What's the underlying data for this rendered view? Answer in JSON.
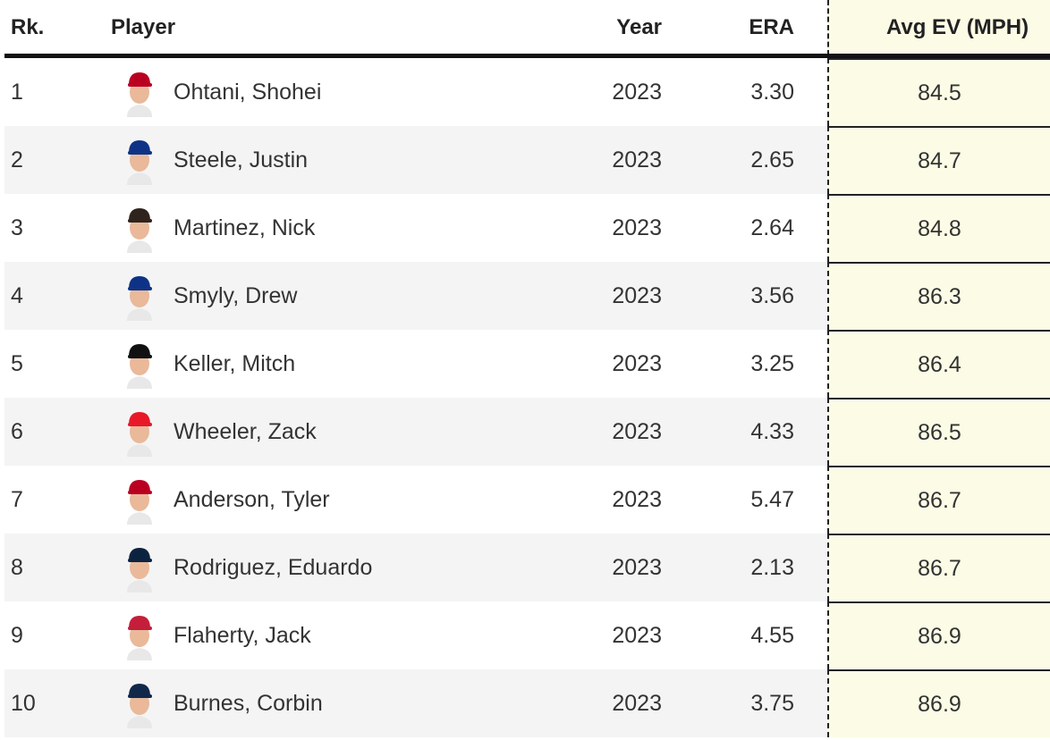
{
  "table": {
    "header": [
      "Rk.",
      "Player",
      "Year",
      "ERA",
      "Avg EV (MPH)"
    ],
    "rows": [
      [
        "1",
        "Ohtani, Shohei",
        "2023",
        "3.30",
        "84.5"
      ],
      [
        "2",
        "Steele, Justin",
        "2023",
        "2.65",
        "84.7"
      ],
      [
        "3",
        "Martinez, Nick",
        "2023",
        "2.64",
        "84.8"
      ],
      [
        "4",
        "Smyly, Drew",
        "2023",
        "3.56",
        "86.3"
      ],
      [
        "5",
        "Keller, Mitch",
        "2023",
        "3.25",
        "86.4"
      ],
      [
        "6",
        "Wheeler, Zack",
        "2023",
        "4.33",
        "86.5"
      ],
      [
        "7",
        "Anderson, Tyler",
        "2023",
        "5.47",
        "86.7"
      ],
      [
        "8",
        "Rodriguez, Eduardo",
        "2023",
        "2.13",
        "86.7"
      ],
      [
        "9",
        "Flaherty, Jack",
        "2023",
        "4.55",
        "86.9"
      ],
      [
        "10",
        "Burnes, Corbin",
        "2023",
        "3.75",
        "86.9"
      ]
    ]
  }
}
